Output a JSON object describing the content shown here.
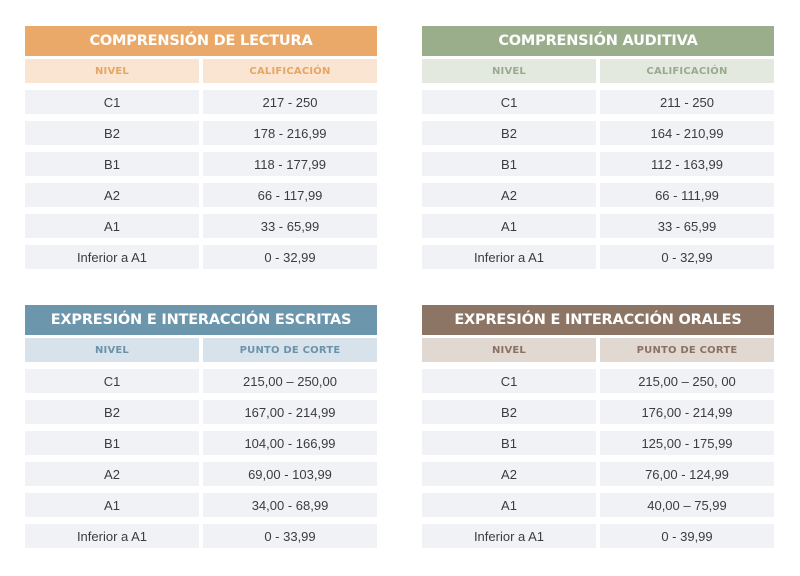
{
  "tables": [
    {
      "title": "COMPRENSIÓN DE LECTURA",
      "colors": {
        "title_bg": "#eaa968",
        "header_bg": "#fae5d2",
        "header_text": "#e7a563"
      },
      "headers": [
        "NIVEL",
        "CALIFICACIÓN"
      ],
      "rows": [
        [
          "C1",
          "217 - 250"
        ],
        [
          "B2",
          "178 - 216,99"
        ],
        [
          "B1",
          "118 - 177,99"
        ],
        [
          "A2",
          "66 - 117,99"
        ],
        [
          "A1",
          "33 - 65,99"
        ],
        [
          "Inferior a A1",
          "0 - 32,99"
        ]
      ]
    },
    {
      "title": "COMPRENSIÓN AUDITIVA",
      "colors": {
        "title_bg": "#9bae8c",
        "header_bg": "#e4e9e0",
        "header_text": "#99ab8c"
      },
      "headers": [
        "NIVEL",
        "CALIFICACIÓN"
      ],
      "rows": [
        [
          "C1",
          "211 - 250"
        ],
        [
          "B2",
          "164 - 210,99"
        ],
        [
          "B1",
          "112 - 163,99"
        ],
        [
          "A2",
          "66 - 111,99"
        ],
        [
          "A1",
          "33 - 65,99"
        ],
        [
          "Inferior a A1",
          "0 - 32,99"
        ]
      ]
    },
    {
      "title": "EXPRESIÓN E INTERACCIÓN ESCRITAS",
      "colors": {
        "title_bg": "#6c96ac",
        "header_bg": "#d8e2ea",
        "header_text": "#6a93ab"
      },
      "headers": [
        "NIVEL",
        "PUNTO DE CORTE"
      ],
      "rows": [
        [
          "C1",
          "215,00 – 250,00"
        ],
        [
          "B2",
          "167,00 - 214,99"
        ],
        [
          "B1",
          "104,00 - 166,99"
        ],
        [
          "A2",
          "69,00 - 103,99"
        ],
        [
          "A1",
          "34,00 - 68,99"
        ],
        [
          "Inferior a A1",
          "0 - 33,99"
        ]
      ]
    },
    {
      "title": "EXPRESIÓN E INTERACCIÓN ORALES",
      "colors": {
        "title_bg": "#8d7565",
        "header_bg": "#e2d8d2",
        "header_text": "#8a7263"
      },
      "headers": [
        "NIVEL",
        "PUNTO DE CORTE"
      ],
      "rows": [
        [
          "C1",
          "215,00 – 250, 00"
        ],
        [
          "B2",
          "176,00 - 214,99"
        ],
        [
          "B1",
          "125,00 - 175,99"
        ],
        [
          "A2",
          "76,00 - 124,99"
        ],
        [
          "A1",
          "40,00 – 75,99"
        ],
        [
          "Inferior a A1",
          "0 - 39,99"
        ]
      ]
    }
  ]
}
